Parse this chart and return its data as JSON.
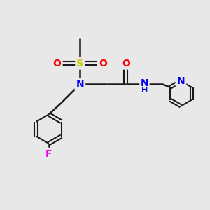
{
  "background_color": "#e8e8e8",
  "bond_color": "#1a1a1a",
  "atom_colors": {
    "S": "#cccc00",
    "N": "#0000ee",
    "O": "#ff0000",
    "F": "#ee00ee",
    "C": "#1a1a1a",
    "H": "#1a1a1a"
  },
  "figsize": [
    3.0,
    3.0
  ],
  "dpi": 100
}
